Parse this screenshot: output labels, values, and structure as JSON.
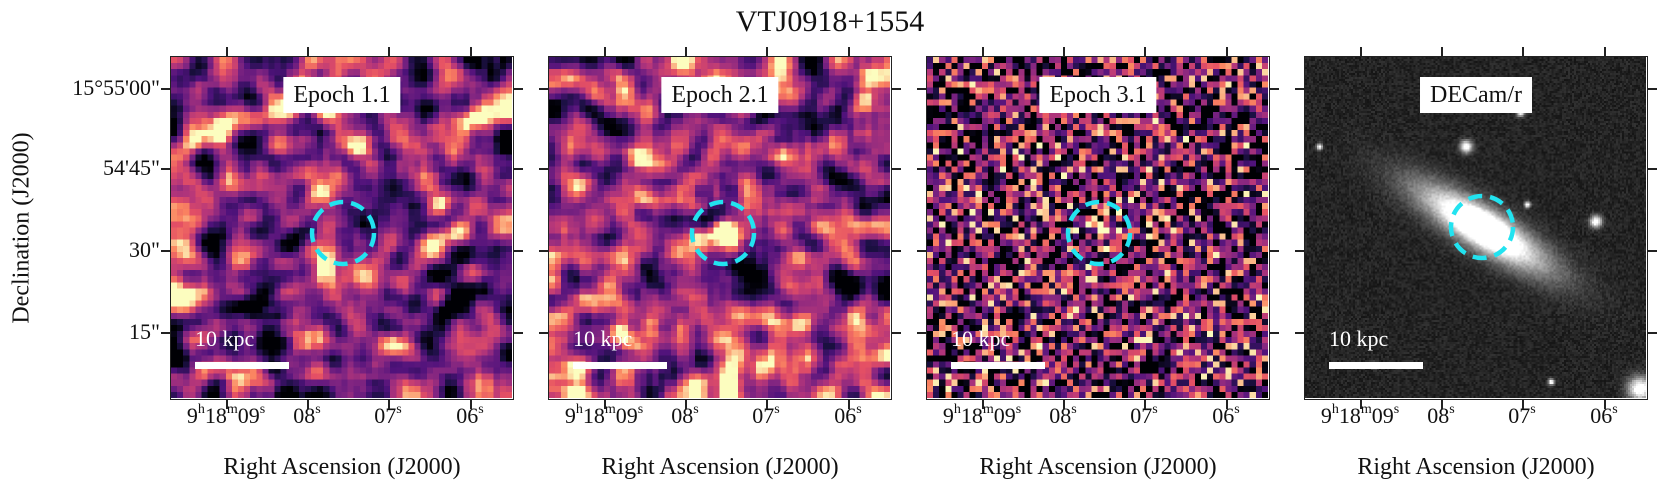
{
  "figure": {
    "title": "VTJ0918+1554",
    "ylabel": "Declination (J2000)",
    "xlabel": "Right Ascension (J2000)",
    "dec_ticks": [
      "15°55'00\"",
      "54'45\"",
      "30\"",
      "15\""
    ],
    "ra_ticks": [
      {
        "main": "9",
        "sup1": "h",
        "mid": "18",
        "sup2": "m",
        "end": "09",
        "sup3": "s"
      },
      {
        "main": "08",
        "sup1": "s"
      },
      {
        "main": "07",
        "sup1": "s"
      },
      {
        "main": "06",
        "sup1": "s"
      }
    ],
    "scale_label": "10 kpc",
    "colors": {
      "circle": "#22e3f0",
      "scale_bar": "#ffffff",
      "colormap": "magma"
    }
  },
  "panels": [
    {
      "label": "Epoch 1.1",
      "colormap": "magma",
      "noise": "smooth"
    },
    {
      "label": "Epoch 2.1",
      "colormap": "magma",
      "noise": "smooth"
    },
    {
      "label": "Epoch 3.1",
      "colormap": "magma",
      "noise": "grainy"
    },
    {
      "label": "DECam/r",
      "colormap": "gray",
      "noise": "galaxy"
    }
  ]
}
